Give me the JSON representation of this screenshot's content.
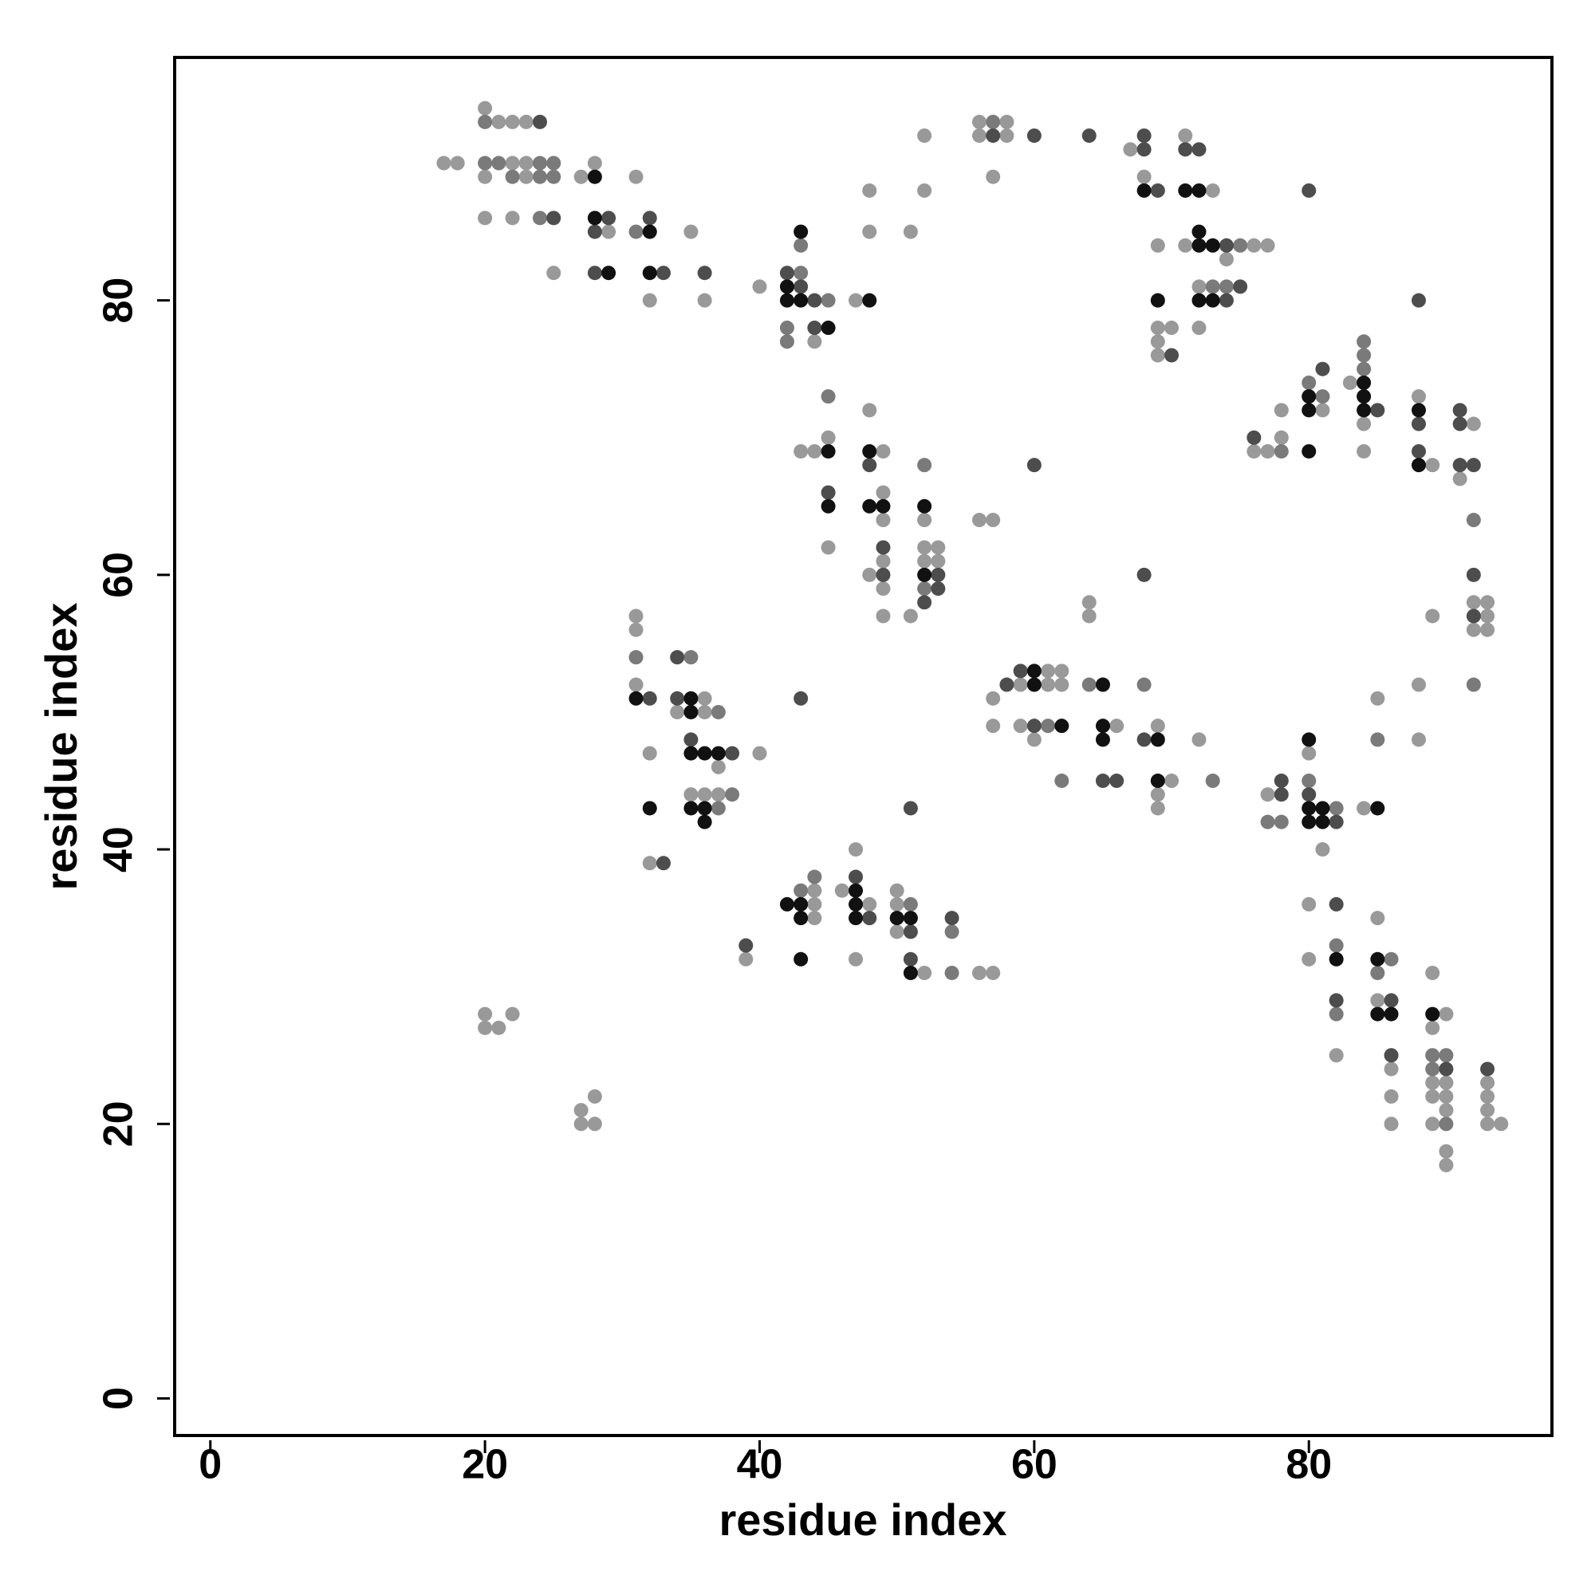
{
  "chart_data": {
    "type": "scatter",
    "x_label": "residue index",
    "y_label": "residue index",
    "xlim": [
      -2.6,
      97.7
    ],
    "ylim": [
      -2.7,
      97.7
    ],
    "xticks": [
      0,
      20,
      40,
      60,
      80
    ],
    "yticks": [
      0,
      20,
      40,
      60,
      80
    ],
    "grid": false,
    "series": [
      {
        "color": "#999999",
        "x": [
          17,
          18,
          20,
          21,
          22,
          23,
          22,
          23,
          20,
          23,
          20,
          22,
          25,
          27,
          28,
          29,
          31,
          32,
          35,
          36,
          40,
          44,
          47,
          48,
          48,
          51,
          52,
          52,
          56,
          58,
          56,
          58,
          57,
          67,
          68,
          71,
          73,
          69,
          71,
          76,
          77,
          74,
          72,
          72,
          69,
          70,
          69,
          69,
          43,
          44,
          45,
          45,
          48,
          49,
          49,
          49,
          49,
          48,
          49,
          49,
          52,
          52,
          53,
          52,
          53,
          51,
          56,
          57,
          76,
          77,
          78,
          78,
          81,
          83,
          84,
          84,
          88,
          89,
          92,
          91,
          92,
          93,
          93,
          92,
          93,
          89,
          88,
          88,
          85,
          64,
          64,
          57,
          59,
          61,
          61,
          62,
          62,
          57,
          59,
          60,
          66,
          69,
          70,
          69,
          69,
          72,
          77,
          80,
          81,
          84,
          80,
          80,
          82,
          85,
          85,
          86,
          86,
          86,
          89,
          90,
          89,
          89,
          90,
          89,
          90,
          90,
          89,
          90,
          90,
          93,
          93,
          93,
          93,
          94,
          31,
          31,
          31,
          34,
          36,
          36,
          40,
          37,
          32,
          35,
          36,
          37,
          32,
          39,
          44,
          44,
          44,
          46,
          47,
          48,
          47,
          50,
          50,
          50,
          52,
          56,
          57,
          20,
          20,
          21,
          22,
          27,
          27,
          28,
          28
        ],
        "y": [
          90,
          90,
          94,
          93,
          93,
          93,
          90,
          90,
          89,
          89,
          86,
          86,
          82,
          89,
          90,
          85,
          89,
          80,
          85,
          80,
          81,
          77,
          80,
          88,
          85,
          85,
          88,
          92,
          93,
          93,
          92,
          92,
          89,
          91,
          89,
          92,
          88,
          84,
          84,
          84,
          84,
          83,
          81,
          78,
          78,
          78,
          77,
          76,
          69,
          69,
          70,
          62,
          72,
          69,
          66,
          64,
          61,
          60,
          59,
          57,
          64,
          62,
          62,
          61,
          61,
          57,
          64,
          64,
          69,
          69,
          70,
          72,
          72,
          74,
          71,
          69,
          73,
          68,
          71,
          67,
          58,
          58,
          57,
          56,
          56,
          57,
          52,
          48,
          51,
          58,
          57,
          51,
          52,
          53,
          52,
          53,
          52,
          49,
          49,
          48,
          49,
          49,
          45,
          44,
          43,
          48,
          44,
          47,
          40,
          43,
          36,
          32,
          25,
          35,
          29,
          24,
          22,
          20,
          31,
          28,
          27,
          23,
          23,
          22,
          22,
          21,
          20,
          18,
          17,
          23,
          22,
          21,
          20,
          20,
          57,
          56,
          52,
          50,
          51,
          50,
          47,
          46,
          47,
          44,
          44,
          44,
          39,
          32,
          37,
          36,
          35,
          37,
          40,
          36,
          32,
          37,
          36,
          34,
          31,
          31,
          31,
          28,
          27,
          27,
          28,
          21,
          20,
          22,
          20
        ]
      },
      {
        "color": "#7a7a7a",
        "x": [
          20,
          20,
          21,
          24,
          25,
          22,
          24,
          25,
          24,
          31,
          43,
          43,
          42,
          42,
          45,
          57,
          73,
          74,
          75,
          45,
          52,
          52,
          78,
          80,
          81,
          84,
          84,
          84,
          92,
          92,
          85,
          64,
          61,
          62,
          68,
          73,
          77,
          78,
          80,
          82,
          82,
          82,
          86,
          85,
          89,
          90,
          89,
          90,
          31,
          35,
          37,
          38,
          37,
          43,
          44,
          51,
          54,
          54
        ],
        "y": [
          93,
          90,
          90,
          90,
          90,
          89,
          89,
          89,
          86,
          85,
          82,
          84,
          78,
          77,
          80,
          93,
          81,
          81,
          84,
          73,
          68,
          59,
          69,
          74,
          73,
          77,
          76,
          75,
          64,
          52,
          48,
          52,
          49,
          45,
          52,
          45,
          42,
          42,
          45,
          43,
          33,
          28,
          32,
          31,
          25,
          25,
          24,
          20,
          54,
          54,
          50,
          44,
          43,
          37,
          38,
          36,
          34,
          31
        ]
      },
      {
        "color": "#4d4d4d",
        "x": [
          24,
          25,
          28,
          29,
          28,
          32,
          33,
          36,
          42,
          43,
          44,
          44,
          57,
          60,
          64,
          68,
          68,
          69,
          71,
          72,
          74,
          75,
          74,
          70,
          80,
          88,
          45,
          48,
          49,
          49,
          53,
          53,
          52,
          60,
          76,
          81,
          85,
          88,
          88,
          91,
          91,
          91,
          92,
          92,
          92,
          68,
          58,
          59,
          60,
          65,
          66,
          68,
          78,
          78,
          80,
          82,
          82,
          82,
          86,
          86,
          90,
          93,
          32,
          34,
          34,
          35,
          38,
          33,
          39,
          43,
          47,
          48,
          51,
          51,
          54,
          51
        ],
        "y": [
          93,
          86,
          85,
          86,
          82,
          86,
          82,
          82,
          82,
          81,
          80,
          78,
          92,
          92,
          92,
          92,
          91,
          88,
          91,
          91,
          84,
          81,
          80,
          76,
          88,
          80,
          66,
          68,
          62,
          60,
          60,
          59,
          58,
          68,
          70,
          75,
          72,
          71,
          69,
          72,
          71,
          68,
          68,
          60,
          57,
          60,
          52,
          53,
          49,
          45,
          45,
          48,
          45,
          44,
          44,
          42,
          36,
          29,
          29,
          25,
          24,
          24,
          51,
          54,
          51,
          48,
          47,
          39,
          33,
          51,
          38,
          35,
          34,
          32,
          35,
          43
        ]
      },
      {
        "color": "#111111",
        "x": [
          28,
          28,
          29,
          32,
          32,
          43,
          42,
          42,
          43,
          45,
          48,
          68,
          71,
          72,
          72,
          72,
          73,
          72,
          73,
          69,
          45,
          45,
          48,
          48,
          49,
          52,
          52,
          80,
          80,
          80,
          84,
          84,
          84,
          88,
          88,
          60,
          60,
          62,
          65,
          65,
          65,
          69,
          69,
          80,
          80,
          81,
          80,
          81,
          85,
          82,
          85,
          85,
          86,
          89,
          31,
          35,
          35,
          35,
          36,
          37,
          32,
          35,
          36,
          36,
          42,
          43,
          43,
          43,
          47,
          47,
          47,
          50,
          51,
          51
        ],
        "y": [
          89,
          86,
          82,
          85,
          82,
          85,
          81,
          80,
          80,
          78,
          80,
          88,
          88,
          88,
          85,
          84,
          84,
          80,
          80,
          80,
          69,
          65,
          69,
          65,
          65,
          65,
          60,
          73,
          72,
          69,
          74,
          73,
          72,
          72,
          68,
          53,
          52,
          49,
          52,
          49,
          48,
          48,
          45,
          48,
          43,
          43,
          42,
          42,
          43,
          32,
          32,
          28,
          28,
          28,
          51,
          51,
          50,
          47,
          47,
          47,
          43,
          43,
          43,
          42,
          36,
          36,
          35,
          32,
          37,
          36,
          35,
          35,
          35,
          31
        ]
      }
    ]
  }
}
